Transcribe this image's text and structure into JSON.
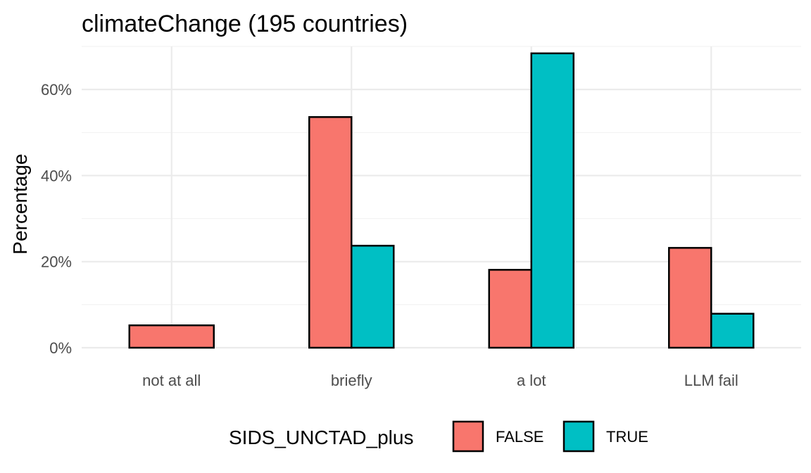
{
  "chart_data": {
    "type": "bar",
    "title": "climateChange (195 countries)",
    "xlabel": "",
    "ylabel": "Percentage",
    "categories": [
      "not at all",
      "briefly",
      "a lot",
      "LLM fail"
    ],
    "ylim": [
      0,
      70
    ],
    "yticks": [
      0,
      20,
      40,
      60
    ],
    "ytick_labels": [
      "0%",
      "20%",
      "40%",
      "60%"
    ],
    "grid": true,
    "legend": {
      "title": "SIDS_UNCTAD_plus",
      "position": "bottom"
    },
    "series": [
      {
        "name": "FALSE",
        "color": "#F8766D",
        "values": [
          5.2,
          53.6,
          18.1,
          23.2
        ]
      },
      {
        "name": "TRUE",
        "color": "#00BFC4",
        "values": [
          null,
          23.7,
          68.4,
          7.9
        ]
      }
    ]
  }
}
